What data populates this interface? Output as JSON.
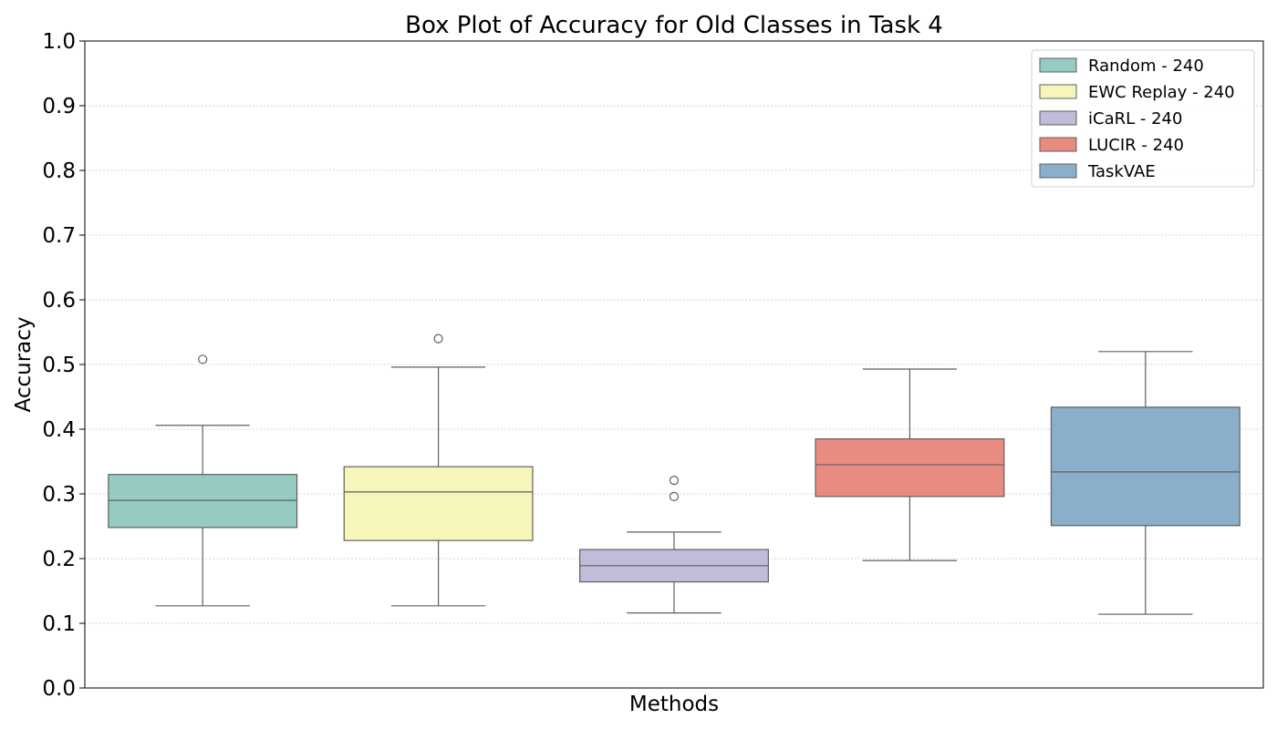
{
  "chart_data": {
    "type": "box",
    "title": "Box Plot of Accuracy for Old Classes in Task 4",
    "xlabel": "Methods",
    "ylabel": "Accuracy",
    "ylim": [
      0.0,
      1.0
    ],
    "yticks": [
      0.0,
      0.1,
      0.2,
      0.3,
      0.4,
      0.5,
      0.6,
      0.7,
      0.8,
      0.9,
      1.0
    ],
    "ytick_labels": [
      "0.0",
      "0.1",
      "0.2",
      "0.3",
      "0.4",
      "0.5",
      "0.6",
      "0.7",
      "0.8",
      "0.9",
      "1.0"
    ],
    "grid": "horizontal dotted",
    "legend_position": "top-right",
    "series": [
      {
        "name": "Random - 240",
        "color": "#96cbc2",
        "whisker_low": 0.127,
        "q1": 0.248,
        "median": 0.29,
        "q3": 0.33,
        "whisker_high": 0.406,
        "outliers": [
          0.508
        ]
      },
      {
        "name": "EWC Replay - 240",
        "color": "#f6f6bb",
        "whisker_low": 0.127,
        "q1": 0.228,
        "median": 0.303,
        "q3": 0.342,
        "whisker_high": 0.496,
        "outliers": [
          0.54
        ]
      },
      {
        "name": "iCaRL - 240",
        "color": "#c0bcd9",
        "whisker_low": 0.116,
        "q1": 0.164,
        "median": 0.189,
        "q3": 0.214,
        "whisker_high": 0.241,
        "outliers": [
          0.296,
          0.321
        ]
      },
      {
        "name": "LUCIR - 240",
        "color": "#ea8b82",
        "whisker_low": 0.197,
        "q1": 0.296,
        "median": 0.345,
        "q3": 0.385,
        "whisker_high": 0.493,
        "outliers": []
      },
      {
        "name": "TaskVAE",
        "color": "#8aafca",
        "whisker_low": 0.114,
        "q1": 0.251,
        "median": 0.334,
        "q3": 0.434,
        "whisker_high": 0.52,
        "outliers": []
      }
    ]
  }
}
